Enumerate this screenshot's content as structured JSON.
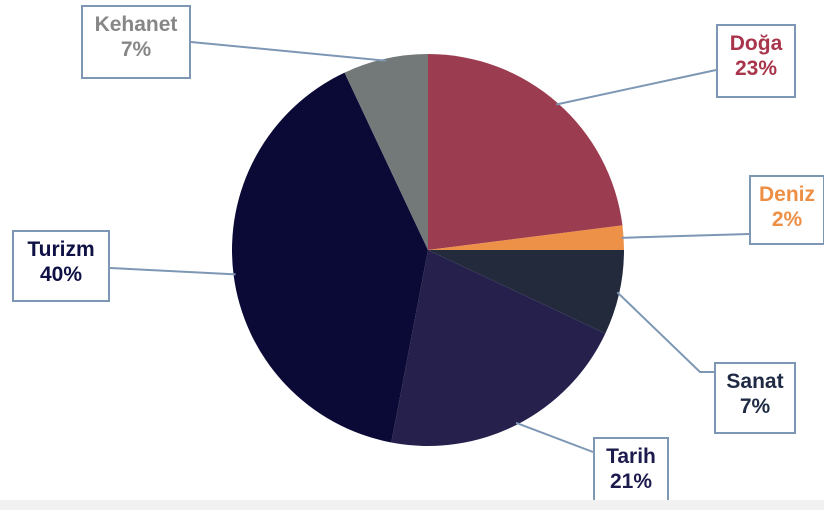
{
  "chart_data": {
    "type": "pie",
    "title": "",
    "slices": [
      {
        "label": "Doğa",
        "value": 23,
        "value_label": "23%",
        "color": "#9c3c50",
        "label_color": "#a8354c"
      },
      {
        "label": "Deniz",
        "value": 2,
        "value_label": "2%",
        "color": "#ee9148",
        "label_color": "#ee8f46"
      },
      {
        "label": "Sanat",
        "value": 7,
        "value_label": "7%",
        "color": "#222a3c",
        "label_color": "#1f2a44"
      },
      {
        "label": "Tarih",
        "value": 21,
        "value_label": "21%",
        "color": "#26204d",
        "label_color": "#1d1b4d"
      },
      {
        "label": "Turizm",
        "value": 40,
        "value_label": "40%",
        "color": "#0b0a36",
        "label_color": "#0f1145"
      },
      {
        "label": "Kehanet",
        "value": 7,
        "value_label": "7%",
        "color": "#737879",
        "label_color": "#878787"
      }
    ],
    "start_angle": "12 o'clock",
    "direction": "clockwise",
    "legend": "none"
  }
}
